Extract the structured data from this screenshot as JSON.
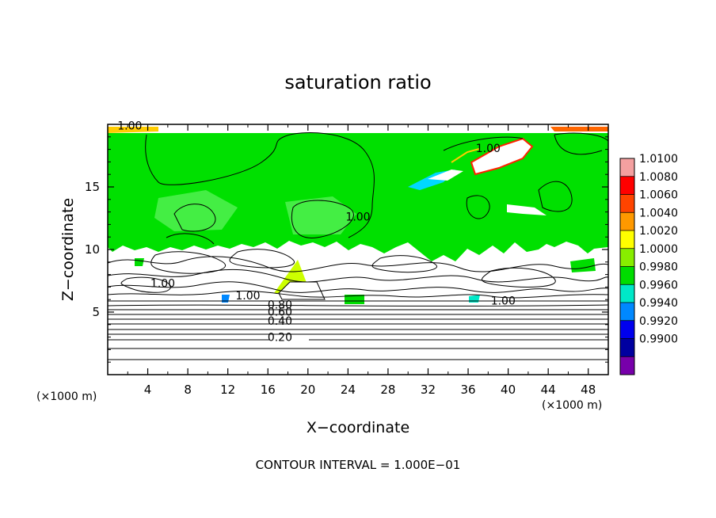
{
  "chart_data": {
    "type": "heatmap",
    "title": "saturation ratio",
    "xlabel": "X−coordinate",
    "ylabel": "Z−coordinate",
    "x_unit": "(×1000 m)",
    "y_unit": "(×1000 m)",
    "xlim": [
      0,
      50
    ],
    "ylim": [
      0,
      20
    ],
    "x_ticks": [
      4,
      8,
      12,
      16,
      20,
      24,
      28,
      32,
      36,
      40,
      44,
      48
    ],
    "y_ticks": [
      5,
      10,
      15
    ],
    "footer": "CONTOUR INTERVAL = 1.000E−01",
    "contour_labels": [
      {
        "text": "1.00",
        "x": 2.2,
        "z": 19.6
      },
      {
        "text": "1.00",
        "x": 38.0,
        "z": 17.8
      },
      {
        "text": "1.00",
        "x": 25.0,
        "z": 12.3
      },
      {
        "text": "1.00",
        "x": 5.5,
        "z": 7.0
      },
      {
        "text": "1.00",
        "x": 14.0,
        "z": 6.0
      },
      {
        "text": "0.80",
        "x": 17.2,
        "z": 5.3
      },
      {
        "text": "0.60",
        "x": 17.2,
        "z": 4.7
      },
      {
        "text": "0.40",
        "x": 17.2,
        "z": 4.0
      },
      {
        "text": "0.20",
        "x": 17.2,
        "z": 2.7
      },
      {
        "text": "1.00",
        "x": 39.5,
        "z": 5.6
      }
    ],
    "colorbar": {
      "levels": [
        "1.0100",
        "1.0080",
        "1.0060",
        "1.0040",
        "1.0020",
        "1.0000",
        "0.9980",
        "0.9960",
        "0.9940",
        "0.9920",
        "0.9900"
      ],
      "colors": [
        "#f4a0a0",
        "#ff0000",
        "#ff4400",
        "#ff9900",
        "#ffff00",
        "#88ee00",
        "#00dd00",
        "#00e8c8",
        "#0088ff",
        "#0000ee",
        "#0000a0",
        "#7700aa"
      ]
    },
    "bands": {
      "upper_level_green": [
        0,
        50,
        10.2,
        19.6
      ],
      "lower_stratified": [
        0,
        50,
        0,
        5.2
      ]
    }
  }
}
